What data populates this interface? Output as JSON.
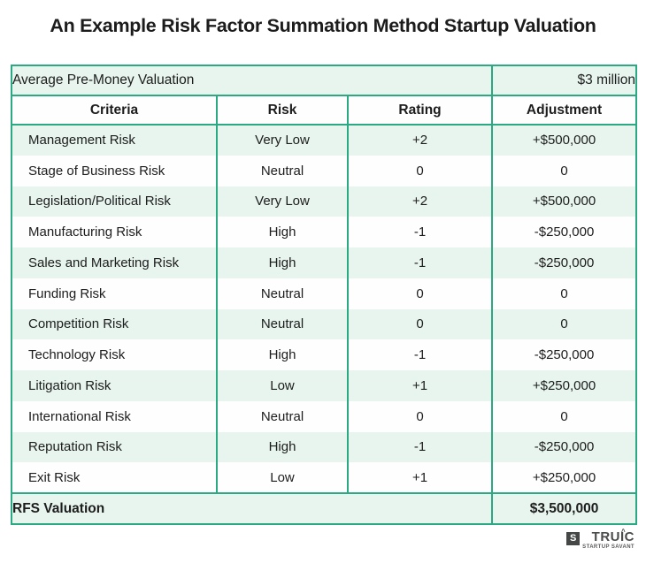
{
  "title": "An Example Risk Factor Summation Method Startup Valuation",
  "table": {
    "pre_money_label": "Average Pre-Money Valuation",
    "pre_money_value": "$3 million",
    "columns": [
      "Criteria",
      "Risk",
      "Rating",
      "Adjustment"
    ],
    "rows": [
      {
        "criteria": "Management Risk",
        "risk": "Very Low",
        "rating": "+2",
        "adjustment": "+$500,000"
      },
      {
        "criteria": "Stage of Business Risk",
        "risk": "Neutral",
        "rating": "0",
        "adjustment": "0"
      },
      {
        "criteria": "Legislation/Political Risk",
        "risk": "Very Low",
        "rating": "+2",
        "adjustment": "+$500,000"
      },
      {
        "criteria": "Manufacturing Risk",
        "risk": "High",
        "rating": "-1",
        "adjustment": "-$250,000"
      },
      {
        "criteria": "Sales and Marketing Risk",
        "risk": "High",
        "rating": "-1",
        "adjustment": "-$250,000"
      },
      {
        "criteria": "Funding Risk",
        "risk": "Neutral",
        "rating": "0",
        "adjustment": "0"
      },
      {
        "criteria": "Competition Risk",
        "risk": "Neutral",
        "rating": "0",
        "adjustment": "0"
      },
      {
        "criteria": "Technology Risk",
        "risk": "High",
        "rating": "-1",
        "adjustment": "-$250,000"
      },
      {
        "criteria": "Litigation Risk",
        "risk": "Low",
        "rating": "+1",
        "adjustment": "+$250,000"
      },
      {
        "criteria": "International Risk",
        "risk": "Neutral",
        "rating": "0",
        "adjustment": "0"
      },
      {
        "criteria": "Reputation Risk",
        "risk": "High",
        "rating": "-1",
        "adjustment": "-$250,000"
      },
      {
        "criteria": "Exit Risk",
        "risk": "Low",
        "rating": "+1",
        "adjustment": "+$250,000"
      }
    ],
    "footer_label": "RFS Valuation",
    "footer_value": "$3,500,000"
  },
  "logo": {
    "square_letter": "S",
    "brand": "TRUIC",
    "caret": "^",
    "tagline": "STARTUP SAVANT"
  },
  "colors": {
    "border_green": "#2aa982",
    "mint_row": "#e7f5ee",
    "text": "#1d1d1d",
    "logo_gray": "#454747"
  }
}
